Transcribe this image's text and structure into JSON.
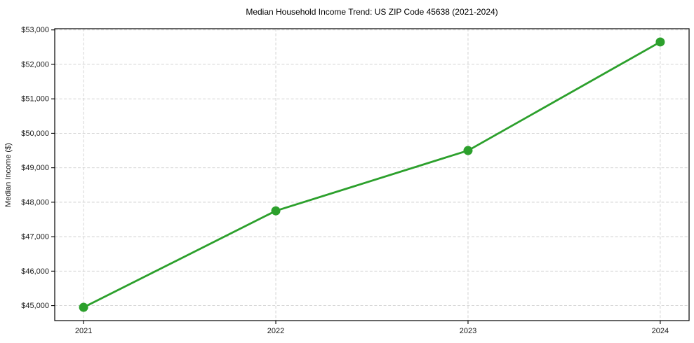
{
  "figure": {
    "background": "#ffffff"
  },
  "chart_data": {
    "type": "line",
    "title": "Median Household Income Trend: US ZIP Code 45638 (2021-2024)",
    "xlabel": "",
    "ylabel": "Median Income ($)",
    "x": [
      2021,
      2022,
      2023,
      2024
    ],
    "x_tick_labels": [
      "2021",
      "2022",
      "2023",
      "2024"
    ],
    "series": [
      {
        "values": [
          44950,
          47750,
          49500,
          52650
        ],
        "color": "#2ca02c",
        "marker": "circle"
      }
    ],
    "y_ticks": [
      45000,
      46000,
      47000,
      48000,
      49000,
      50000,
      51000,
      52000,
      53000
    ],
    "y_tick_labels": [
      "$45,000",
      "$46,000",
      "$47,000",
      "$48,000",
      "$49,000",
      "$50,000",
      "$51,000",
      "$52,000",
      "$53,000"
    ],
    "ylim": [
      44565,
      53035
    ],
    "xlim": [
      2020.85,
      2024.15
    ],
    "grid": true,
    "grid_style": "dashed",
    "grid_color": "#cfcfcf",
    "axis_color": "#000000",
    "text_color": "#1a1a1a",
    "line_width": 2.8,
    "marker_size": 6.5,
    "legend": "none"
  }
}
